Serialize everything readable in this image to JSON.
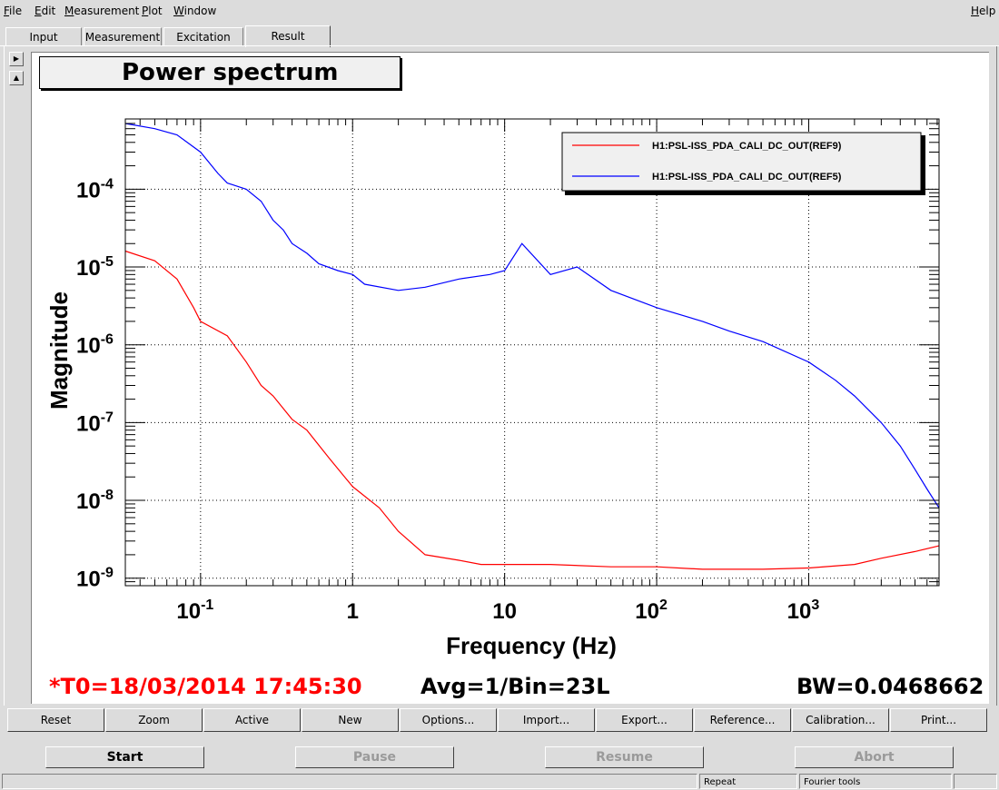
{
  "menu": [
    {
      "label": "File",
      "u": "F",
      "rest": "ile"
    },
    {
      "label": "Edit",
      "u": "E",
      "rest": "dit"
    },
    {
      "label": "Measurement",
      "u": "M",
      "rest": "easurement"
    },
    {
      "label": "Plot",
      "u": "P",
      "rest": "lot"
    },
    {
      "label": "Window",
      "u": "W",
      "rest": "indow"
    }
  ],
  "help": {
    "u": "H",
    "rest": "elp"
  },
  "tabs": [
    "Input",
    "Measurement",
    "Excitation",
    "Result"
  ],
  "plot_title": "Power spectrum",
  "status": {
    "t0": "*T0=18/03/2014 17:45:30",
    "avg": "Avg=1/Bin=23L",
    "bw": "BW=0.0468662",
    "t0_color": "#ff0000"
  },
  "buttons": [
    "Reset",
    "Zoom",
    "Active",
    "New",
    "Options...",
    "Import...",
    "Export...",
    "Reference...",
    "Calibration...",
    "Print..."
  ],
  "controls": [
    "Start",
    "Pause",
    "Resume",
    "Abort"
  ],
  "statusbar": [
    "Repeat",
    "Fourier tools"
  ],
  "chart_data": {
    "type": "line",
    "title": "Power spectrum",
    "xlabel": "Frequency (Hz)",
    "ylabel": "Magnitude",
    "xscale": "log",
    "yscale": "log",
    "xlim": [
      0.032,
      7200
    ],
    "ylim": [
      8e-10,
      0.0008
    ],
    "x_ticks": [
      {
        "value": 0.1,
        "base": "10",
        "exp": "-1"
      },
      {
        "value": 1,
        "base": "1",
        "exp": ""
      },
      {
        "value": 10,
        "base": "10",
        "exp": ""
      },
      {
        "value": 100,
        "base": "10",
        "exp": "2"
      },
      {
        "value": 1000,
        "base": "10",
        "exp": "3"
      }
    ],
    "y_ticks": [
      {
        "value": 1e-09,
        "base": "10",
        "exp": "-9"
      },
      {
        "value": 1e-08,
        "base": "10",
        "exp": "-8"
      },
      {
        "value": 1e-07,
        "base": "10",
        "exp": "-7"
      },
      {
        "value": 1e-06,
        "base": "10",
        "exp": "-6"
      },
      {
        "value": 1e-05,
        "base": "10",
        "exp": "-5"
      },
      {
        "value": 0.0001,
        "base": "10",
        "exp": "-4"
      }
    ],
    "grid": true,
    "legend_position": "top-right",
    "series": [
      {
        "name": "H1:PSL-ISS_PDA_CALI_DC_OUT(REF9)",
        "color": "#ff0000",
        "x": [
          0.032,
          0.05,
          0.07,
          0.09,
          0.1,
          0.15,
          0.2,
          0.25,
          0.3,
          0.4,
          0.5,
          0.7,
          1,
          1.5,
          2,
          3,
          5,
          7,
          10,
          20,
          50,
          100,
          200,
          500,
          1000,
          2000,
          3000,
          5000,
          7200
        ],
        "y": [
          1.6e-05,
          1.2e-05,
          7e-06,
          3e-06,
          2e-06,
          1.3e-06,
          6e-07,
          3e-07,
          2.2e-07,
          1.1e-07,
          8e-08,
          3.5e-08,
          1.5e-08,
          8e-09,
          4e-09,
          2e-09,
          1.7e-09,
          1.5e-09,
          1.5e-09,
          1.5e-09,
          1.4e-09,
          1.4e-09,
          1.3e-09,
          1.3e-09,
          1.35e-09,
          1.5e-09,
          1.8e-09,
          2.2e-09,
          2.6e-09
        ]
      },
      {
        "name": "H1:PSL-ISS_PDA_CALI_DC_OUT(REF5)",
        "color": "#0000ff",
        "x": [
          0.032,
          0.05,
          0.07,
          0.1,
          0.13,
          0.15,
          0.2,
          0.25,
          0.3,
          0.35,
          0.4,
          0.5,
          0.6,
          0.8,
          1,
          1.2,
          2,
          3,
          5,
          8,
          10,
          13,
          20,
          30,
          50,
          100,
          200,
          300,
          500,
          1000,
          1500,
          2000,
          3000,
          4000,
          5000,
          6000,
          7200
        ],
        "y": [
          0.0007,
          0.0006,
          0.0005,
          0.0003,
          0.00016,
          0.00012,
          0.0001,
          7e-05,
          4e-05,
          3e-05,
          2e-05,
          1.5e-05,
          1.1e-05,
          9e-06,
          8e-06,
          6e-06,
          5e-06,
          5.5e-06,
          7e-06,
          8e-06,
          9e-06,
          2e-05,
          8e-06,
          1e-05,
          5e-06,
          3e-06,
          2e-06,
          1.5e-06,
          1.1e-06,
          6e-07,
          3.5e-07,
          2.2e-07,
          1e-07,
          5e-08,
          2.5e-08,
          1.4e-08,
          8e-09
        ]
      }
    ]
  }
}
